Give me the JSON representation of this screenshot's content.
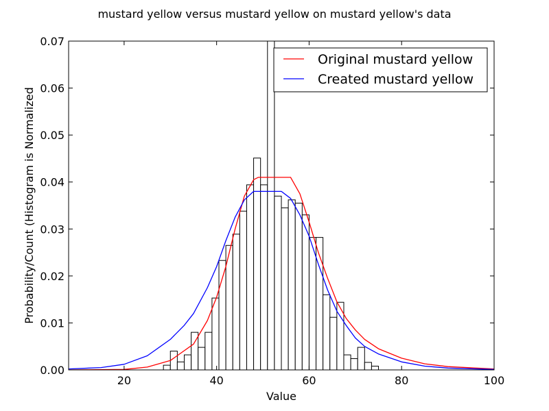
{
  "chart_data": {
    "type": "histogram",
    "title": "mustard yellow versus mustard yellow on mustard yellow's data",
    "xlabel": "Value",
    "ylabel": "Probability/Count (Histogram is Normalized",
    "xlim": [
      8,
      100
    ],
    "ylim": [
      0,
      0.07
    ],
    "x_ticks": [
      20,
      40,
      60,
      80,
      100
    ],
    "y_ticks": [
      0.0,
      0.01,
      0.02,
      0.03,
      0.04,
      0.05,
      0.06,
      0.07
    ],
    "y_tick_labels": [
      "0.00",
      "0.01",
      "0.02",
      "0.03",
      "0.04",
      "0.05",
      "0.06",
      "0.07"
    ],
    "grid": false,
    "legend_position": "top-right",
    "histogram": {
      "bin_width": 1.5,
      "bin_starts": [
        28.5,
        30,
        31.5,
        33,
        34.5,
        36,
        37.5,
        39,
        40.5,
        42,
        43.5,
        45,
        46.5,
        48,
        49.5,
        51,
        52.5,
        54,
        55.5,
        57,
        58.5,
        60,
        61.5,
        63,
        64.5,
        66,
        67.5,
        69,
        70.5,
        72,
        73.5,
        75,
        76.5
      ],
      "densities": [
        0.001,
        0.004,
        0.0017,
        0.0032,
        0.008,
        0.0048,
        0.008,
        0.0153,
        0.0233,
        0.0265,
        0.0289,
        0.0338,
        0.0394,
        0.0451,
        0.0394,
        0.074,
        0.037,
        0.0345,
        0.0362,
        0.0355,
        0.033,
        0.0282,
        0.0282,
        0.016,
        0.0112,
        0.0144,
        0.0032,
        0.0024,
        0.0048,
        0.0016,
        0.0008,
        0.0,
        0.0
      ],
      "edge_color": "#000000",
      "fill_color": "#ffffff"
    },
    "series": [
      {
        "name": "Original mustard yellow",
        "color": "#ff0000",
        "x": [
          8,
          20,
          25,
          30,
          35,
          38,
          40,
          42,
          44,
          46,
          48,
          49,
          50,
          52,
          54,
          56,
          58,
          60,
          62,
          64,
          66,
          68,
          70,
          72,
          75,
          80,
          85,
          90,
          100
        ],
        "y": [
          0.0,
          0.0001,
          0.0006,
          0.002,
          0.0055,
          0.0105,
          0.0155,
          0.022,
          0.03,
          0.037,
          0.0405,
          0.041,
          0.041,
          0.041,
          0.041,
          0.041,
          0.0375,
          0.0315,
          0.025,
          0.0195,
          0.0145,
          0.011,
          0.0085,
          0.0065,
          0.0045,
          0.0025,
          0.0013,
          0.0007,
          0.0002
        ]
      },
      {
        "name": "Created mustard yellow",
        "color": "#0000ff",
        "x": [
          8,
          15,
          20,
          25,
          30,
          33,
          35,
          38,
          40,
          42,
          44,
          46,
          48,
          50,
          52,
          54,
          56,
          58,
          60,
          62,
          64,
          66,
          68,
          70,
          72,
          75,
          80,
          85,
          90,
          100
        ],
        "y": [
          0.0002,
          0.0005,
          0.0012,
          0.003,
          0.0065,
          0.0095,
          0.012,
          0.0175,
          0.022,
          0.0275,
          0.0325,
          0.0362,
          0.038,
          0.038,
          0.038,
          0.038,
          0.0365,
          0.033,
          0.0285,
          0.0225,
          0.017,
          0.0125,
          0.0095,
          0.0068,
          0.005,
          0.0034,
          0.0017,
          0.0008,
          0.0004,
          0.0001
        ]
      }
    ]
  }
}
